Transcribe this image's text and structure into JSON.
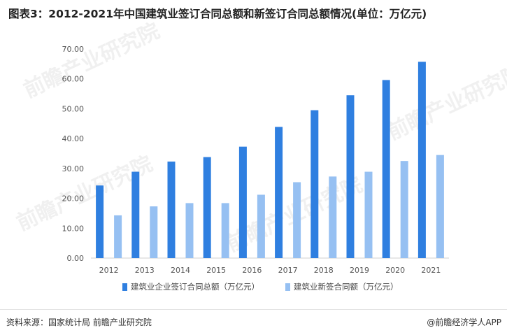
{
  "title": "图表3：2012-2021年中国建筑业签订合同总额和新签订合同总额情况(单位：万亿元)",
  "source": "资料来源：国家统计局 前瞻产业研究院",
  "credit": "@前瞻经济学人APP",
  "watermark": "前瞻产业研究院",
  "chart_data": {
    "type": "bar",
    "categories": [
      "2012",
      "2013",
      "2014",
      "2015",
      "2016",
      "2017",
      "2018",
      "2019",
      "2020",
      "2021"
    ],
    "series": [
      {
        "name": "建筑业企业签订合同总额（万亿元）",
        "color": "#2f7fe0",
        "values": [
          24.3,
          28.9,
          32.3,
          33.8,
          37.3,
          43.9,
          49.5,
          54.5,
          59.6,
          65.7
        ]
      },
      {
        "name": "建筑业新签合同额（万亿元）",
        "color": "#96c0f2",
        "values": [
          14.3,
          17.3,
          18.4,
          18.4,
          21.2,
          25.4,
          27.3,
          28.9,
          32.5,
          34.5
        ]
      }
    ],
    "yticks": [
      "0.00",
      "10.00",
      "20.00",
      "30.00",
      "40.00",
      "50.00",
      "60.00",
      "70.00"
    ],
    "ylim": [
      0,
      70
    ],
    "legend": "bottom-center",
    "grid": false
  }
}
